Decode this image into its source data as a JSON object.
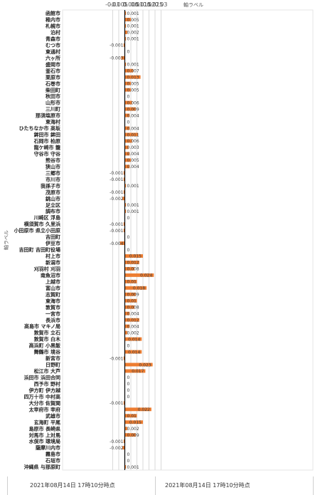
{
  "chart_data": {
    "type": "bar",
    "orientation": "horizontal",
    "title": "",
    "top_axis_title": "軸ラベル",
    "ylabel": "軸ラベル",
    "xlim": [
      -0.01,
      0.03
    ],
    "x_ticks": [
      "-0.01",
      "-0.005",
      "0",
      "0.005",
      "0.01",
      "0.015",
      "0.02",
      "0.025",
      "0.03"
    ],
    "grid": true,
    "bar_color": "#ed7d31",
    "categories": [
      "函館市",
      "稚内市",
      "札幌市",
      "泊村",
      "青森市",
      "むつ市",
      "東通村",
      "六ヶ所",
      "盛岡市",
      "釜石市",
      "栗原市",
      "石巻市",
      "柴田町",
      "秋田市",
      "山形市",
      "三川町",
      "那須塩原市",
      "東海村",
      "ひたちなか市 高坂",
      "鉾田市 鉾田",
      "石岡市 柏原",
      "龍ケ崎市 籠",
      "守谷市 守谷",
      "熊谷市",
      "狭山市",
      "三郷市",
      "市川市",
      "我孫子市",
      "茂原市",
      "銚山市",
      "足立区",
      "調布市",
      "川崎区 浮島",
      "横須賀市 久里浜",
      "小田原市 県立小田原",
      "吉田町",
      "伊豆市",
      "吉田町 吉田町役場",
      "村上市",
      "新潟市",
      "刈羽村 刈羽",
      "南魚沼市",
      "上越市",
      "富山市",
      "志賀町",
      "東海市",
      "敦賀市",
      "一宮市",
      "長浜市",
      "高島市 マキノ局",
      "敦賀市 立石",
      "敦賀市 白木",
      "高浜町 小黒飯",
      "舞鶴市 境谷",
      "新宮市",
      "日野町",
      "松江市 大芦",
      "浜田市 浜田合同",
      "西予市 野村",
      "伊方町 伊方越",
      "四万十市 中村高",
      "大分市 佐賀関",
      "太宰府市 宰府",
      "武雄市",
      "玄海町 平尾",
      "島原市 長崎県",
      "対馬市 上対馬",
      "水俣市 環境局",
      "薩摩川内市",
      "霧島市",
      "石垣市",
      "沖縄県 与那原町"
    ],
    "values": [
      0.001,
      0.005,
      0.001,
      0.002,
      0.001,
      -0.001,
      0,
      -0.003,
      0.001,
      0.007,
      0.013,
      0.005,
      0.005,
      0,
      0.006,
      0.009,
      0.004,
      0,
      0.004,
      0.011,
      0.006,
      0.003,
      0.004,
      0.005,
      0.004,
      -0.001,
      -0.001,
      0.001,
      -0.001,
      -0.002,
      0.001,
      0.001,
      0,
      -0.001,
      -0.001,
      0,
      -0.004,
      0,
      0.015,
      0.012,
      0.008,
      0.024,
      0.01,
      0.018,
      0.009,
      0.01,
      0.008,
      0.004,
      0.012,
      0.004,
      0.002,
      0.014,
      0,
      0.014,
      -0.001,
      0.023,
      0.017,
      0,
      0,
      0,
      0,
      -0.001,
      0.022,
      0.01,
      0.015,
      0.002,
      0.009,
      -0.001,
      -0.002,
      0,
      0,
      0.001
    ],
    "data_labels": [
      "0.001",
      "0.005",
      "0.001",
      "0.002",
      "0.001",
      "-0.001",
      "0",
      "-0.003",
      "0.001",
      "0.007",
      "0.013",
      "0.005",
      "0.005",
      "0",
      "0.006",
      "0.009",
      "0.004",
      "0",
      "0.004",
      "0.011",
      "0.006",
      "0.003",
      "0.004",
      "0.005",
      "0.004",
      "-0.001",
      "-0.001",
      "0.001",
      "-0.001",
      "-0.002",
      "0.001",
      "0.001",
      "0",
      "-0.001",
      "-0.001",
      "0",
      "-0.004",
      "0",
      "0.015",
      "0.012",
      "0.008",
      "0.024",
      "0.01",
      "0.018",
      "0.009",
      "0.01",
      "0.008",
      "0.004",
      "0.012",
      "0.004",
      "0.002",
      "0.014",
      "0",
      "0.014",
      "-0.001",
      "0.023",
      "0.017",
      "0",
      "0",
      "0",
      "0",
      "-0.001",
      "0.022",
      "0.01",
      "0.015",
      "0.002",
      "0.009",
      "-0.001",
      "-0.002",
      "0",
      "0",
      "0.001"
    ]
  },
  "footer": {
    "left": "2021年08月14日 17時10分時点",
    "right": "2021年08月14日 17時10分時点"
  }
}
